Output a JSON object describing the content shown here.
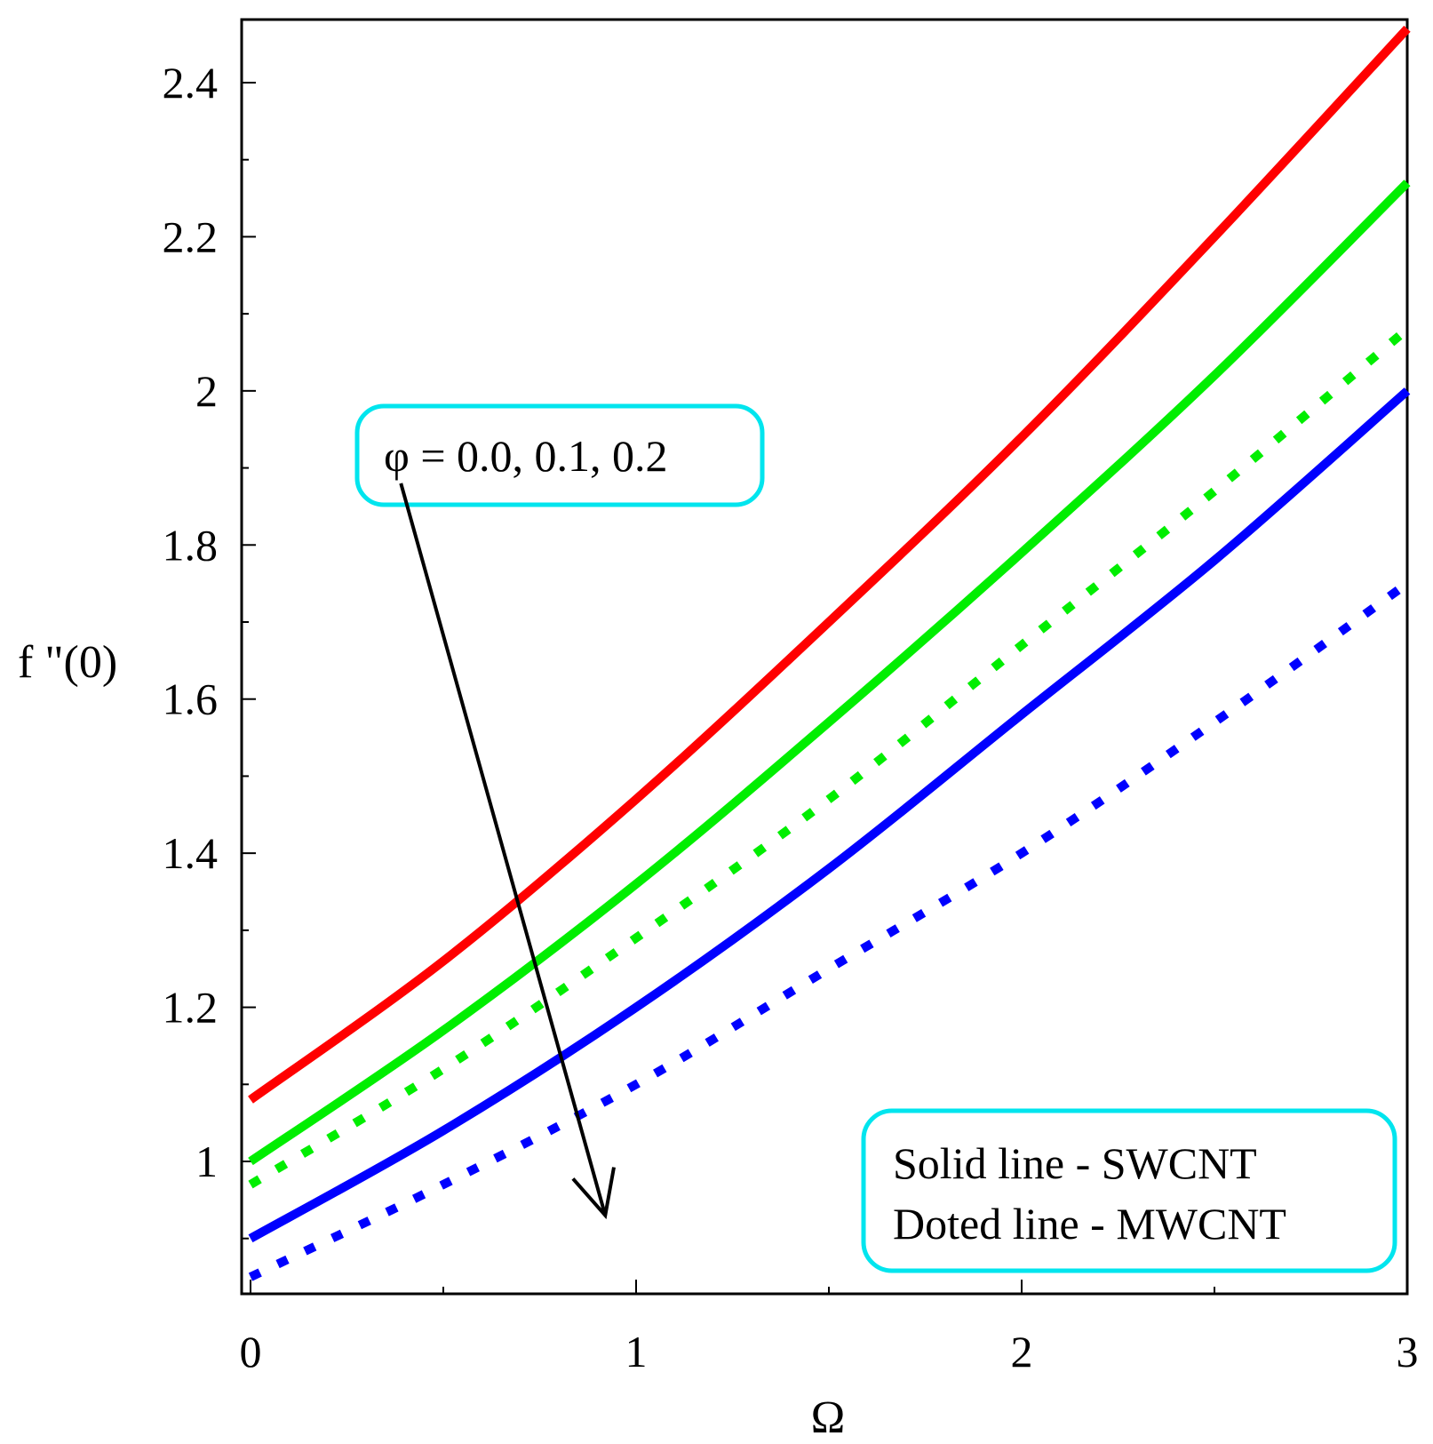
{
  "chart_data": {
    "type": "line",
    "title": "",
    "xlabel": "Ω",
    "ylabel": "f \"(0)",
    "xlim": [
      0,
      3
    ],
    "ylim": [
      0.84,
      2.48
    ],
    "x_ticks": [
      0,
      1,
      2,
      3
    ],
    "x_tick_labels": [
      "0",
      "1",
      "2",
      "3"
    ],
    "y_ticks": [
      1,
      1.2,
      1.4,
      1.6,
      1.8,
      2,
      2.2,
      2.4
    ],
    "y_tick_labels": [
      "1",
      "1.2",
      "1.4",
      "1.6",
      "1.8",
      "2",
      "2.2",
      "2.4"
    ],
    "grid": false,
    "x": [
      0,
      0.5,
      1,
      1.5,
      2,
      2.5,
      3
    ],
    "series": [
      {
        "name": "SWCNT φ = 0.0",
        "style": "solid",
        "color": "#ff0000",
        "values": [
          1.08,
          1.26,
          1.47,
          1.7,
          1.94,
          2.2,
          2.47
        ]
      },
      {
        "name": "SWCNT φ = 0.1",
        "style": "solid",
        "color": "#00ee00",
        "values": [
          1.0,
          1.17,
          1.36,
          1.57,
          1.79,
          2.02,
          2.27
        ]
      },
      {
        "name": "MWCNT φ = 0.1",
        "style": "dotted",
        "color": "#00ee00",
        "values": [
          0.97,
          1.12,
          1.29,
          1.47,
          1.67,
          1.87,
          2.08
        ]
      },
      {
        "name": "SWCNT φ = 0.2",
        "style": "solid",
        "color": "#0000ff",
        "values": [
          0.9,
          1.04,
          1.2,
          1.38,
          1.58,
          1.78,
          2.0
        ]
      },
      {
        "name": "MWCNT φ = 0.2",
        "style": "dotted",
        "color": "#0000ff",
        "values": [
          0.85,
          0.97,
          1.1,
          1.25,
          1.4,
          1.57,
          1.75
        ]
      }
    ],
    "annotation": {
      "text": "φ = 0.0, 0.1, 0.2",
      "arrow_from": [
        0.39,
        1.88
      ],
      "arrow_to": [
        0.92,
        0.93
      ]
    },
    "legend": {
      "placement": "bottom-right",
      "entries": [
        "Solid line - SWCNT",
        "Doted line - MWCNT"
      ]
    },
    "colors": {
      "annotation_border": "#00e5ee",
      "axis": "#000000",
      "arrow": "#000000"
    }
  }
}
